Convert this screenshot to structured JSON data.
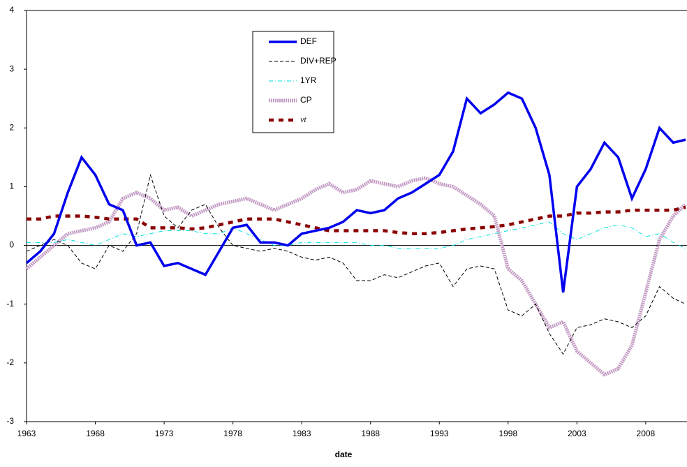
{
  "chart_data": {
    "type": "line",
    "x_label": "date",
    "x": [
      1963,
      1964,
      1965,
      1966,
      1967,
      1968,
      1969,
      1970,
      1971,
      1972,
      1973,
      1974,
      1975,
      1976,
      1977,
      1978,
      1979,
      1980,
      1981,
      1982,
      1983,
      1984,
      1985,
      1986,
      1987,
      1988,
      1989,
      1990,
      1991,
      1992,
      1993,
      1994,
      1995,
      1996,
      1997,
      1998,
      1999,
      2000,
      2001,
      2002,
      2003,
      2004,
      2005,
      2006,
      2007,
      2008,
      2009,
      2010,
      2010.9
    ],
    "xlim": [
      1963,
      2011
    ],
    "xticks": [
      1963,
      1968,
      1973,
      1978,
      1983,
      1988,
      1993,
      1998,
      2003,
      2008
    ],
    "ylim": [
      -3,
      4
    ],
    "yticks": [
      -3,
      -2,
      -1,
      0,
      1,
      2,
      3,
      4
    ],
    "series": [
      {
        "name": "DEF",
        "color": "#0000ee",
        "style": "solid",
        "values": [
          -0.3,
          -0.1,
          0.2,
          0.9,
          1.5,
          1.2,
          0.7,
          0.6,
          0.0,
          0.05,
          -0.35,
          -0.3,
          -0.4,
          -0.5,
          -0.1,
          0.3,
          0.35,
          0.05,
          0.05,
          0.0,
          0.2,
          0.25,
          0.3,
          0.4,
          0.6,
          0.55,
          0.6,
          0.8,
          0.9,
          1.05,
          1.2,
          1.6,
          2.5,
          2.25,
          2.4,
          2.6,
          2.5,
          2.0,
          1.2,
          -0.8,
          1.0,
          1.3,
          1.75,
          1.5,
          0.8,
          1.3,
          2.0,
          1.75,
          1.8
        ]
      },
      {
        "name": "DIV+REP",
        "color": "#000000",
        "style": "dashed",
        "values": [
          -0.1,
          0.0,
          0.1,
          0.0,
          -0.3,
          -0.4,
          0.0,
          -0.1,
          0.2,
          1.2,
          0.5,
          0.3,
          0.6,
          0.7,
          0.3,
          0.0,
          -0.05,
          -0.1,
          -0.05,
          -0.1,
          -0.2,
          -0.25,
          -0.2,
          -0.3,
          -0.6,
          -0.6,
          -0.5,
          -0.55,
          -0.45,
          -0.35,
          -0.3,
          -0.7,
          -0.4,
          -0.35,
          -0.4,
          -1.1,
          -1.2,
          -1.0,
          -1.5,
          -1.85,
          -1.4,
          -1.35,
          -1.25,
          -1.3,
          -1.4,
          -1.2,
          -0.7,
          -0.9,
          -1.0
        ]
      },
      {
        "name": "1YR",
        "color": "#00e0e0",
        "style": "dashdot",
        "values": [
          0.05,
          0.05,
          0.05,
          0.1,
          0.05,
          0.0,
          0.1,
          0.2,
          0.15,
          0.2,
          0.25,
          0.25,
          0.25,
          0.2,
          0.2,
          0.3,
          0.2,
          0.1,
          0.0,
          0.0,
          0.05,
          0.05,
          0.05,
          0.05,
          0.05,
          0.0,
          0.0,
          -0.05,
          -0.05,
          -0.05,
          -0.05,
          0.0,
          0.1,
          0.15,
          0.2,
          0.25,
          0.3,
          0.35,
          0.4,
          0.2,
          0.1,
          0.2,
          0.3,
          0.35,
          0.3,
          0.15,
          0.2,
          0.05,
          -0.05
        ]
      },
      {
        "name": "CP",
        "color": "#c49cc4",
        "style": "thick",
        "values": [
          -0.4,
          -0.2,
          0.0,
          0.2,
          0.25,
          0.3,
          0.4,
          0.8,
          0.9,
          0.8,
          0.6,
          0.65,
          0.5,
          0.6,
          0.7,
          0.75,
          0.8,
          0.7,
          0.6,
          0.7,
          0.8,
          0.95,
          1.05,
          0.9,
          0.95,
          1.1,
          1.05,
          1.0,
          1.1,
          1.15,
          1.05,
          1.0,
          0.85,
          0.7,
          0.5,
          -0.4,
          -0.6,
          -1.0,
          -1.4,
          -1.3,
          -1.8,
          -2.0,
          -2.2,
          -2.1,
          -1.7,
          -0.8,
          0.1,
          0.5,
          0.7
        ]
      },
      {
        "name": "νt",
        "color": "#8b0000",
        "style": "bigdash",
        "values": [
          0.45,
          0.45,
          0.5,
          0.5,
          0.5,
          0.48,
          0.45,
          0.45,
          0.45,
          0.3,
          0.3,
          0.3,
          0.28,
          0.3,
          0.35,
          0.4,
          0.45,
          0.45,
          0.45,
          0.4,
          0.35,
          0.3,
          0.25,
          0.25,
          0.25,
          0.25,
          0.25,
          0.22,
          0.2,
          0.2,
          0.22,
          0.25,
          0.28,
          0.3,
          0.32,
          0.35,
          0.4,
          0.45,
          0.5,
          0.5,
          0.55,
          0.55,
          0.57,
          0.57,
          0.6,
          0.6,
          0.6,
          0.6,
          0.65
        ]
      }
    ]
  }
}
